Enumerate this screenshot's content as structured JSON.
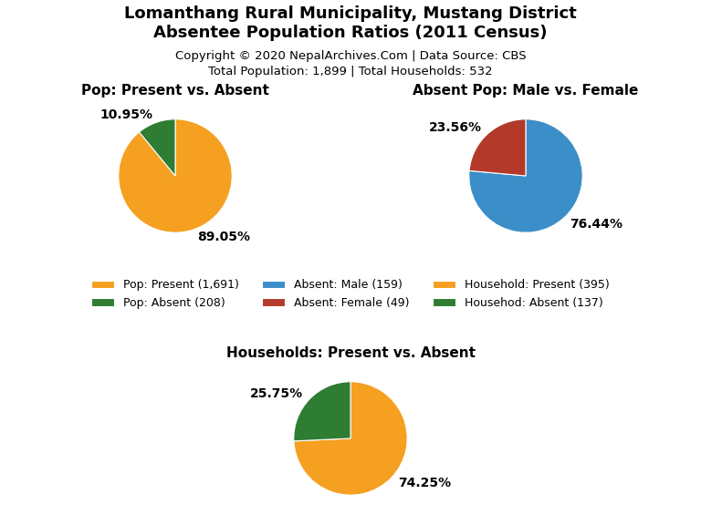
{
  "title": "Lomanthang Rural Municipality, Mustang District\nAbsentee Population Ratios (2011 Census)",
  "subtitle": [
    "Copyright © 2020 NepalArchives.Com | Data Source: CBS",
    "Total Population: 1,899 | Total Households: 532"
  ],
  "chart_data": [
    {
      "type": "pie",
      "title": "Pop: Present vs. Absent",
      "categories": [
        "Pop: Present (1,691)",
        "Pop: Absent (208)"
      ],
      "values": [
        89.05,
        10.95
      ],
      "value_labels": [
        "89.05%",
        "10.95%"
      ],
      "data_labels": true,
      "colors": [
        "#F5A020",
        "#2E7D32"
      ],
      "legend": "center"
    },
    {
      "type": "pie",
      "title": "Absent Pop: Male vs. Female",
      "categories": [
        "Absent: Male (159)",
        "Absent: Female (49)"
      ],
      "values": [
        76.44,
        23.56
      ],
      "value_labels": [
        "76.44%",
        "23.56%"
      ],
      "data_labels": true,
      "colors": [
        "#3B8EC8",
        "#B33A2A"
      ],
      "legend": "center"
    },
    {
      "type": "pie",
      "title": "Households: Present vs. Absent",
      "categories": [
        "Household: Present (395)",
        "Househod: Absent (137)"
      ],
      "values": [
        74.25,
        25.75
      ],
      "value_labels": [
        "74.25%",
        "25.75%"
      ],
      "data_labels": true,
      "colors": [
        "#F5A020",
        "#2E7D32"
      ],
      "legend": "center"
    }
  ]
}
